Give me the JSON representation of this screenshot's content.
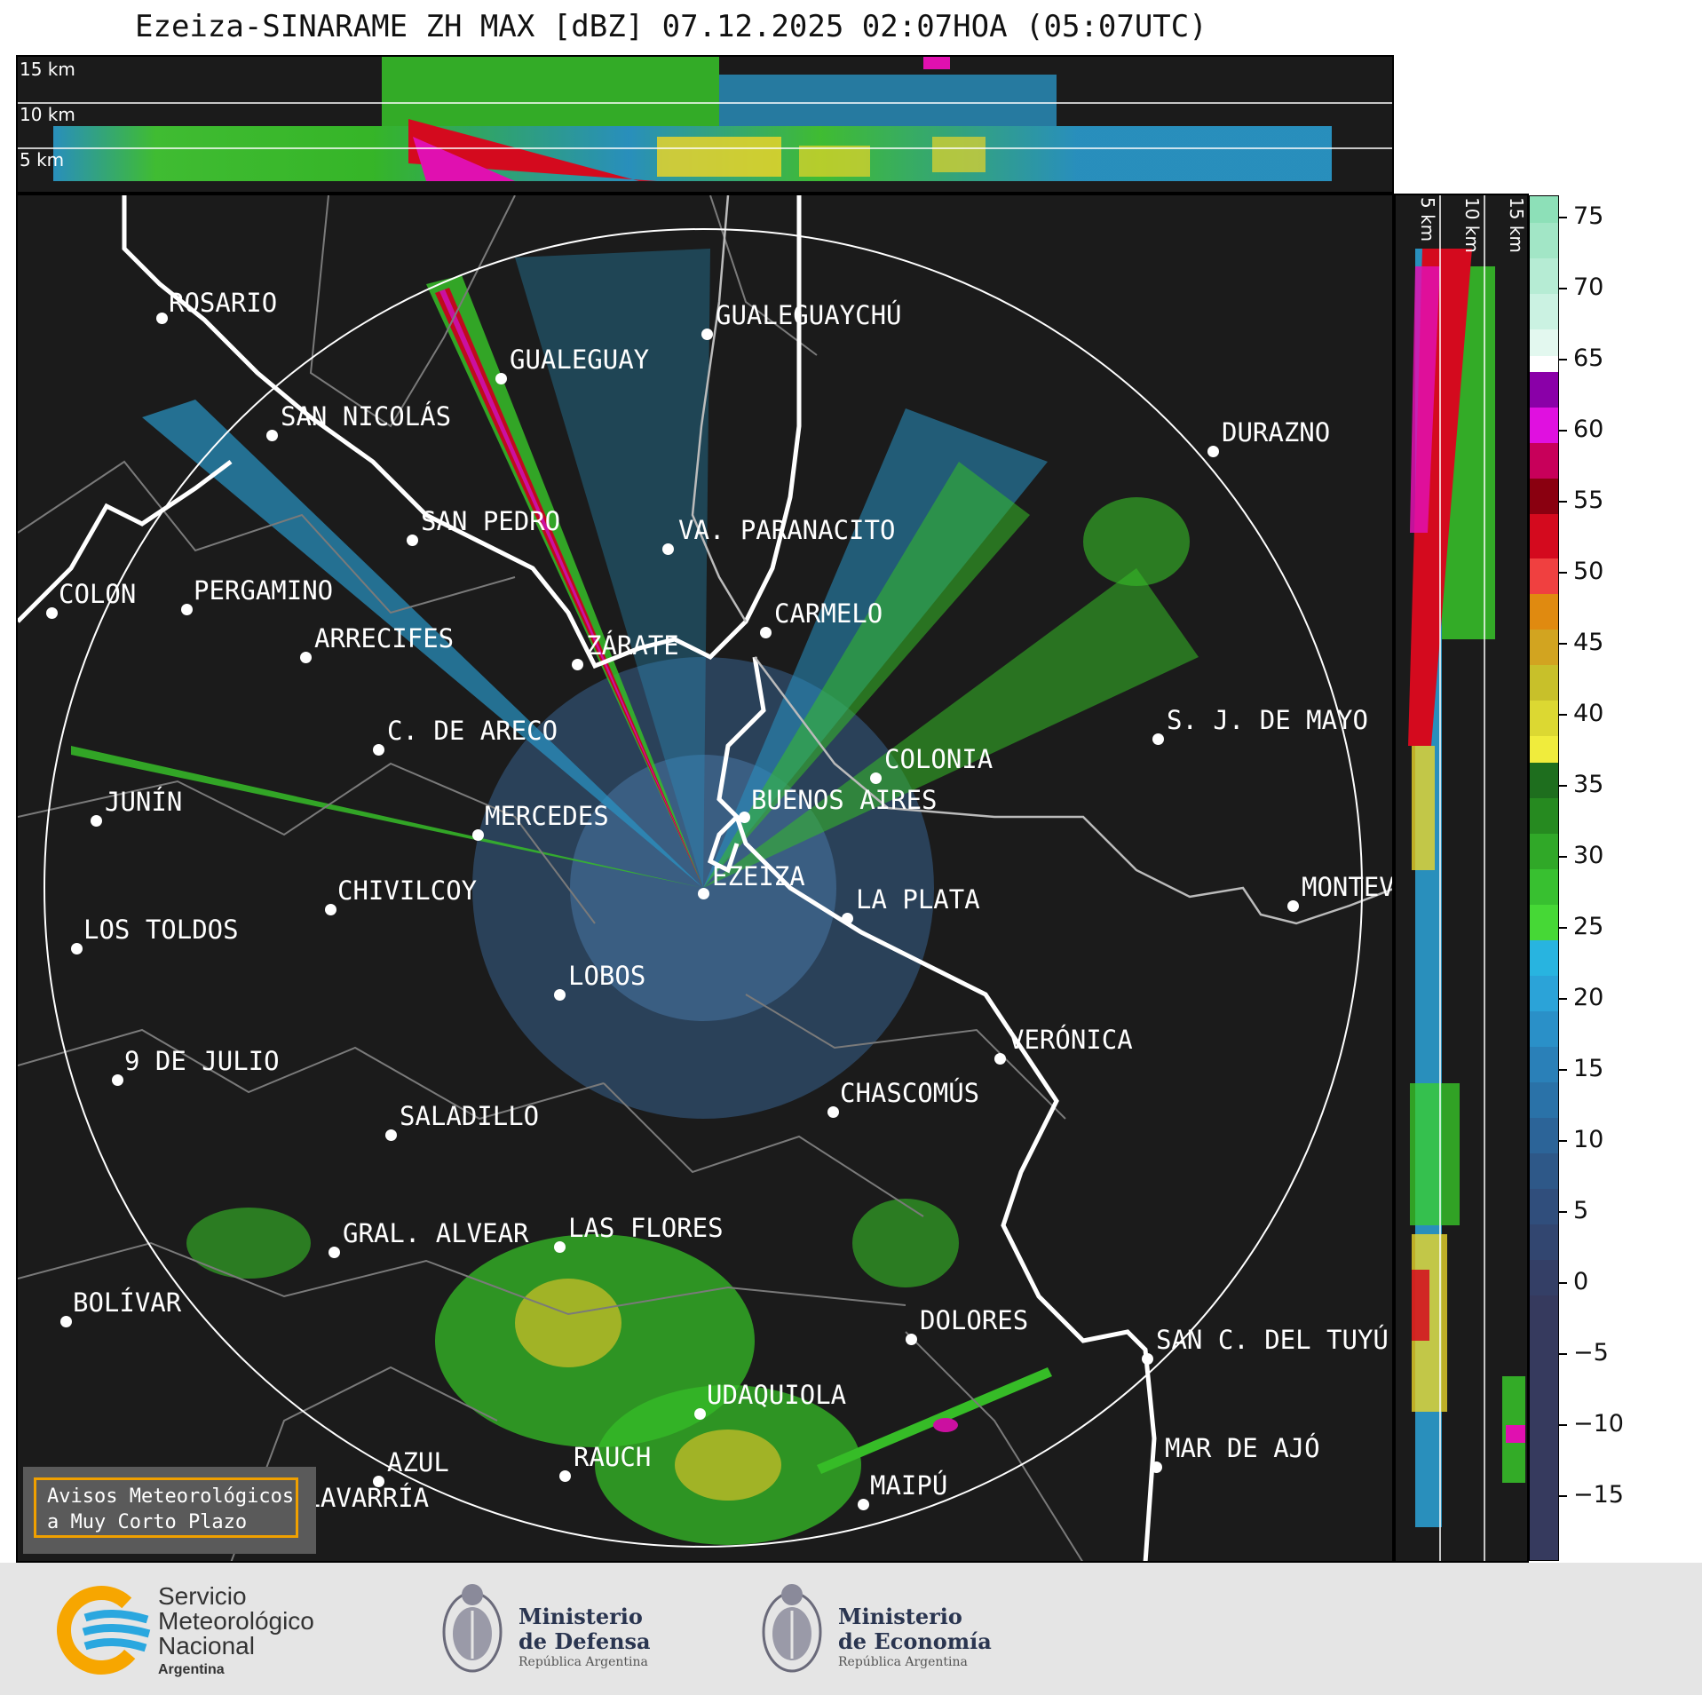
{
  "title": "Ezeiza-SINARAME ZH MAX [dBZ] 07.12.2025 02:07HOA (05:07UTC)",
  "top_panel": {
    "labels": [
      "15 km",
      "10 km",
      "5 km"
    ]
  },
  "right_panel": {
    "labels": [
      "5 km",
      "10 km",
      "15 km"
    ]
  },
  "cities": [
    {
      "name": "ROSARIO"
    },
    {
      "name": "GUALEGUAYCHÚ"
    },
    {
      "name": "GUALEGUAY"
    },
    {
      "name": "SAN NICOLÁS"
    },
    {
      "name": "DURAZNO"
    },
    {
      "name": "SAN PEDRO"
    },
    {
      "name": "VA. PARANACITO"
    },
    {
      "name": "COLON"
    },
    {
      "name": "PERGAMINO"
    },
    {
      "name": "CARMELO"
    },
    {
      "name": "ARRECIFES"
    },
    {
      "name": "ZÁRATE"
    },
    {
      "name": "S. J. DE MAYO"
    },
    {
      "name": "C. DE ARECO"
    },
    {
      "name": "COLONIA"
    },
    {
      "name": "JUNÍN"
    },
    {
      "name": "BUENOS AIRES"
    },
    {
      "name": "MERCEDES"
    },
    {
      "name": "MONTEV"
    },
    {
      "name": "EZEIZA"
    },
    {
      "name": "CHIVILCOY"
    },
    {
      "name": "LA PLATA"
    },
    {
      "name": "LOS TOLDOS"
    },
    {
      "name": "LOBOS"
    },
    {
      "name": "VERÓNICA"
    },
    {
      "name": "9 DE JULIO"
    },
    {
      "name": "CHASCOMÚS"
    },
    {
      "name": "SALADILLO"
    },
    {
      "name": "GRAL. ALVEAR"
    },
    {
      "name": "LAS FLORES"
    },
    {
      "name": "BOLÍVAR"
    },
    {
      "name": "DOLORES"
    },
    {
      "name": "SAN C. DEL TUYÚ"
    },
    {
      "name": "UDAQUIOLA"
    },
    {
      "name": "MAR DE AJÓ"
    },
    {
      "name": "AZUL"
    },
    {
      "name": "RAUCH"
    },
    {
      "name": "OLAVARRÍA"
    },
    {
      "name": "MAIPÚ"
    }
  ],
  "colorbar": {
    "ticks": [
      "75",
      "70",
      "65",
      "60",
      "55",
      "50",
      "45",
      "40",
      "35",
      "30",
      "25",
      "20",
      "15",
      "10",
      "5",
      "0",
      "−5",
      "−10",
      "−15"
    ]
  },
  "warning_box": {
    "line1": "Avisos Meteorológicos",
    "line2": "a Muy Corto Plazo"
  },
  "footer": {
    "smn": {
      "line1": "Servicio",
      "line2": "Meteorológico",
      "line3": "Nacional",
      "line4": "Argentina"
    },
    "defensa": {
      "line1": "Ministerio",
      "line2": "de Defensa",
      "line3": "República Argentina"
    },
    "economia": {
      "line1": "Ministerio",
      "line2": "de Economía",
      "line3": "República Argentina"
    }
  },
  "colors": {
    "background": "#1b1b1b",
    "range_ring": "#ffffff",
    "coastline": "#ffffff",
    "borders": "#7a7a7a",
    "warning_border": "#f0a000",
    "smn_orange": "#f7a600",
    "smn_blue": "#2aa7df"
  }
}
